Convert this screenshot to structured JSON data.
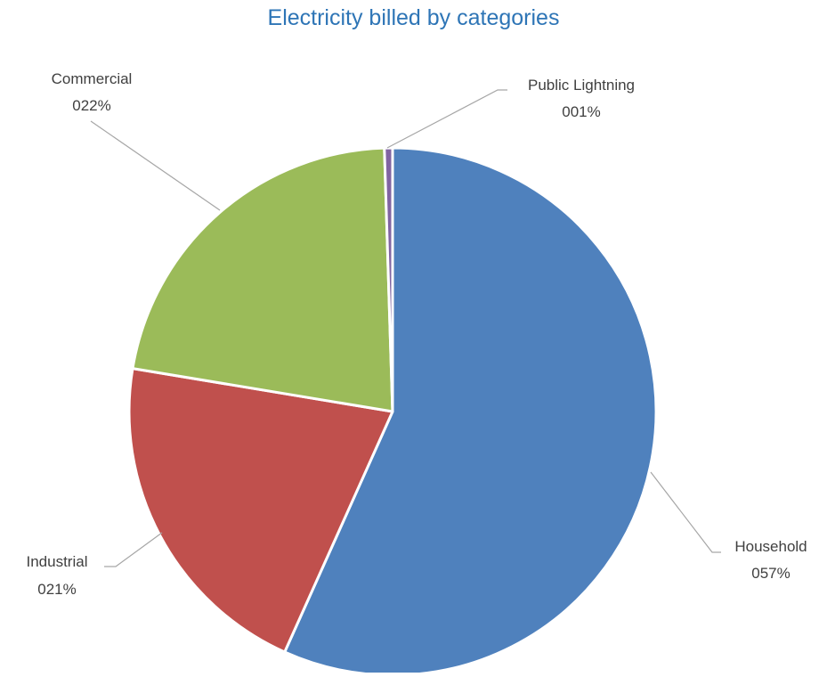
{
  "chart_data": {
    "type": "pie",
    "title": "Electricity billed by categories",
    "start_angle_deg": 0,
    "direction": "clockwise",
    "slices": [
      {
        "label": "Household",
        "percent_label": "057%",
        "value": 57,
        "color": "#4f81bd"
      },
      {
        "label": "Industrial",
        "percent_label": "021%",
        "value": 21,
        "color": "#c0504d"
      },
      {
        "label": "Commercial",
        "percent_label": "022%",
        "value": 22,
        "color": "#9bbb59"
      },
      {
        "label": "Public Lightning",
        "percent_label": "001%",
        "value": 0.5,
        "color": "#8064a2"
      }
    ],
    "legend": "none",
    "data_labels": "outside-with-leader-lines"
  }
}
